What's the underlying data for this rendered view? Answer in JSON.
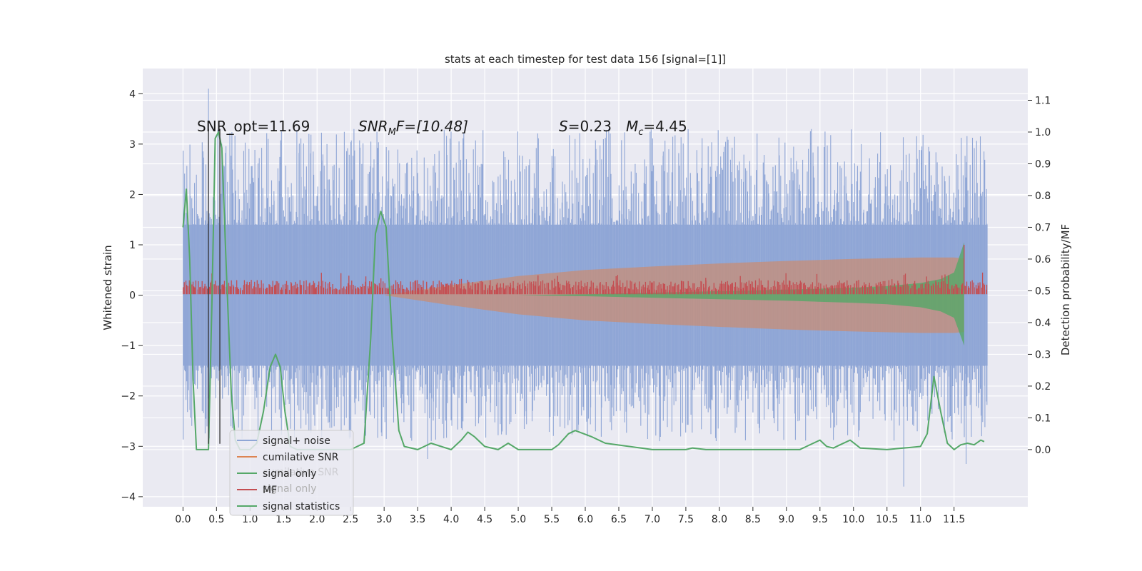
{
  "chart_data": {
    "type": "line",
    "title": "stats at each timestep for test data 156 [signal=[1]]",
    "xlabel": "",
    "ylabel": "Whitened strain",
    "ylabel_right": "Detection probability/MF",
    "xlim": [
      -0.6,
      12.6
    ],
    "ylim": [
      -4.2,
      4.5
    ],
    "ylim_right": [
      -0.18,
      1.2
    ],
    "x_ticks": [
      "0.0",
      "0.5",
      "1.0",
      "1.5",
      "2.0",
      "2.5",
      "3.0",
      "3.5",
      "4.0",
      "4.5",
      "5.0",
      "5.5",
      "6.0",
      "6.5",
      "7.0",
      "7.5",
      "8.0",
      "8.5",
      "9.0",
      "9.5",
      "10.0",
      "10.5",
      "11.0",
      "11.5"
    ],
    "y_ticks": [
      "4",
      "3",
      "2",
      "1",
      "0",
      "−1",
      "−2",
      "−3",
      "−4"
    ],
    "y_ticks_right": [
      "1.1",
      "1.0",
      "0.9",
      "0.8",
      "0.7",
      "0.6",
      "0.5",
      "0.4",
      "0.3",
      "0.2",
      "0.1",
      "0.0"
    ],
    "grid": true,
    "colors": {
      "background": "#eaeaf2",
      "noise": "#8fa6d6",
      "cumulative_snr": "#dd8452",
      "signal_only": "#55a868",
      "mf": "#c44e52",
      "statistics": "#55a868",
      "marker": "#333333"
    },
    "annotations": {
      "snr_opt": "SNR_opt=11.69",
      "snr_mf_symbol": "SNR",
      "snr_mf_sub": "M",
      "snr_mf_rest": "F=[10.48]",
      "s_symbol": "S",
      "s_value": "=0.23",
      "mc_symbol": "M",
      "mc_sub": "c",
      "mc_value": "=4.45"
    },
    "legend_position": "lower-left",
    "legend": [
      {
        "label": "signal+ noise",
        "color": "#8fa6d6"
      },
      {
        "label": "cumilative SNR",
        "color": "#dd8452"
      },
      {
        "label": "signal only",
        "color": "#55a868"
      },
      {
        "label": "MF",
        "color": "#c44e52"
      },
      {
        "label": "signal statistics",
        "color": "#55a868"
      }
    ],
    "legend_ghost": [
      {
        "label": "cumilative SNR"
      },
      {
        "label": "signal only"
      }
    ],
    "series": [
      {
        "name": "signal+ noise",
        "axis": "left",
        "description_type": "noise-band",
        "x_range": [
          0.0,
          12.0
        ],
        "dense_band": [
          -1.4,
          1.4
        ],
        "typical_extreme": [
          -2.9,
          3.3
        ],
        "max": 4.1,
        "min": -3.8
      },
      {
        "name": "cumilative SNR",
        "axis": "left",
        "description_type": "envelope",
        "x": [
          3.0,
          4.0,
          5.0,
          6.0,
          7.0,
          8.0,
          9.0,
          10.0,
          11.0,
          11.5,
          11.65
        ],
        "upper": [
          0.0,
          0.2,
          0.38,
          0.5,
          0.57,
          0.63,
          0.68,
          0.72,
          0.75,
          0.75,
          0.73
        ],
        "lower": [
          0.0,
          -0.2,
          -0.38,
          -0.5,
          -0.57,
          -0.63,
          -0.68,
          -0.72,
          -0.75,
          -0.75,
          -0.73
        ]
      },
      {
        "name": "signal only",
        "axis": "left",
        "description_type": "envelope",
        "x": [
          5.0,
          6.0,
          7.0,
          8.0,
          9.0,
          10.0,
          10.5,
          11.0,
          11.3,
          11.5,
          11.65
        ],
        "upper": [
          0.0,
          0.02,
          0.05,
          0.08,
          0.11,
          0.15,
          0.18,
          0.24,
          0.32,
          0.45,
          1.05
        ],
        "lower": [
          0.0,
          -0.02,
          -0.05,
          -0.08,
          -0.11,
          -0.15,
          -0.18,
          -0.24,
          -0.32,
          -0.45,
          -1.0
        ]
      },
      {
        "name": "MF",
        "axis": "left",
        "description_type": "noise-band",
        "x_range": [
          0.0,
          12.0
        ],
        "band": [
          0.02,
          0.22
        ],
        "spike": {
          "x": 11.65,
          "y": 1.0
        }
      },
      {
        "name": "signal statistics",
        "axis": "right",
        "x": [
          0.0,
          0.05,
          0.1,
          0.15,
          0.2,
          0.3,
          0.38,
          0.43,
          0.48,
          0.53,
          0.58,
          0.65,
          0.72,
          0.78,
          0.85,
          1.0,
          1.1,
          1.2,
          1.3,
          1.38,
          1.45,
          1.52,
          1.6,
          1.7,
          2.0,
          2.3,
          2.5,
          2.7,
          2.8,
          2.87,
          2.95,
          3.03,
          3.12,
          3.22,
          3.3,
          3.5,
          3.7,
          4.0,
          4.15,
          4.25,
          4.35,
          4.5,
          4.7,
          4.85,
          5.0,
          5.5,
          5.6,
          5.75,
          5.85,
          6.1,
          6.3,
          7.0,
          7.5,
          7.6,
          7.8,
          8.5,
          9.2,
          9.4,
          9.5,
          9.6,
          9.7,
          9.8,
          9.95,
          10.1,
          10.5,
          11.0,
          11.1,
          11.2,
          11.3,
          11.4,
          11.5,
          11.6,
          11.7,
          11.8,
          11.9,
          11.95
        ],
        "values": [
          0.7,
          0.82,
          0.6,
          0.22,
          0.0,
          0.0,
          0.0,
          0.45,
          0.98,
          1.0,
          0.95,
          0.55,
          0.18,
          0.03,
          0.0,
          0.0,
          0.02,
          0.12,
          0.26,
          0.3,
          0.26,
          0.12,
          0.01,
          0.0,
          0.0,
          0.0,
          0.0,
          0.02,
          0.35,
          0.68,
          0.75,
          0.7,
          0.35,
          0.06,
          0.01,
          0.0,
          0.02,
          0.0,
          0.03,
          0.055,
          0.04,
          0.01,
          0.0,
          0.02,
          0.0,
          0.0,
          0.015,
          0.05,
          0.06,
          0.04,
          0.02,
          0.0,
          0.0,
          0.005,
          0.0,
          0.0,
          0.0,
          0.02,
          0.03,
          0.01,
          0.005,
          0.015,
          0.03,
          0.005,
          0.0,
          0.01,
          0.05,
          0.23,
          0.12,
          0.02,
          0.0,
          0.015,
          0.02,
          0.015,
          0.03,
          0.025
        ]
      }
    ],
    "markers": [
      {
        "x": 0.38,
        "label": "",
        "ymin": -2.95,
        "ymax": 3.3
      },
      {
        "x": 0.55,
        "label": "",
        "ymin": -2.95,
        "ymax": 3.3
      }
    ]
  }
}
